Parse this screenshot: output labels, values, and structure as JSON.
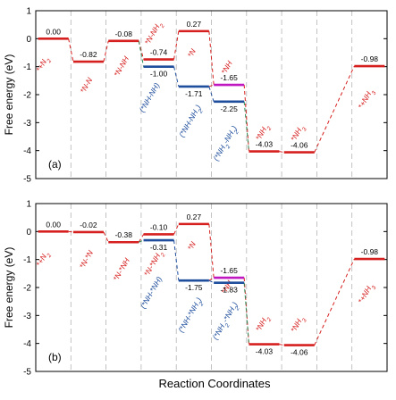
{
  "figure": {
    "xlabel": "Reaction Coordinates",
    "colors": {
      "red": "#d62020",
      "blue": "#1f4e9c",
      "green": "#2e8b57",
      "magenta": "#c018c0",
      "grid": "#b4b4b4"
    }
  },
  "chart_data": [
    {
      "type": "line",
      "panel": "(a)",
      "ylabel": "Free energy (eV)",
      "ylim": [
        -5,
        1
      ],
      "yticks": [
        "1",
        "0",
        "-1",
        "-2",
        "-3",
        "-4",
        "-5"
      ],
      "grid": "vertical dashed",
      "steps": 10,
      "levels": [
        {
          "name": "*+N2",
          "step": 0,
          "y": 0.0,
          "value_label": "0.00",
          "color": "red"
        },
        {
          "name": "*N-N",
          "step": 1,
          "y": -0.82,
          "value_label": "-0.82",
          "color": "red"
        },
        {
          "name": "*N-NH",
          "step": 2,
          "y": -0.08,
          "value_label": "-0.08",
          "color": "red"
        },
        {
          "name": "*N-NH2",
          "step": 3,
          "y": -0.74,
          "value_label": "-0.74",
          "color": "red"
        },
        {
          "name": "(*NH-NH)",
          "step": 3,
          "y": -1.0,
          "value_label": "-1.00",
          "color": "blue"
        },
        {
          "name": "*N",
          "step": 4,
          "y": 0.27,
          "value_label": "0.27",
          "color": "red"
        },
        {
          "name": "(*NH-NH2)",
          "step": 4,
          "y": -1.71,
          "value_label": "-1.71",
          "color": "blue"
        },
        {
          "name": "*NH",
          "step": 5,
          "y": -1.65,
          "value_label": "-1.65",
          "color": "magenta"
        },
        {
          "name": "(*NH2-NH2)",
          "step": 5,
          "y": -2.25,
          "value_label": "-2.25",
          "color": "blue"
        },
        {
          "name": "*NH2",
          "step": 6,
          "y": -4.03,
          "value_label": "-4.03",
          "color": "red"
        },
        {
          "name": "*NH3",
          "step": 7,
          "y": -4.06,
          "value_label": "-4.06",
          "color": "red"
        },
        {
          "name": "*+NH3",
          "step": 9,
          "y": -0.98,
          "value_label": "-0.98",
          "color": "red"
        }
      ],
      "species_labels": [
        "*+N2",
        "*N-N",
        "*N-NH",
        "*N-NH2",
        "(*NH-NH)",
        "*N",
        "(*NH-NH2)",
        "*NH",
        "(*NH2-NH2)",
        "*NH2",
        "*NH3",
        "*+NH3"
      ]
    },
    {
      "type": "line",
      "panel": "(b)",
      "ylabel": "Free energy (eV)",
      "ylim": [
        -5,
        1
      ],
      "yticks": [
        "1",
        "0",
        "-1",
        "-2",
        "-3",
        "-4",
        "-5"
      ],
      "grid": "vertical dashed",
      "steps": 10,
      "levels": [
        {
          "name": "*+N2",
          "step": 0,
          "y": 0.0,
          "value_label": "0.00",
          "color": "red"
        },
        {
          "name": "*N-*N",
          "step": 1,
          "y": -0.02,
          "value_label": "-0.02",
          "color": "red"
        },
        {
          "name": "*N-*NH",
          "step": 2,
          "y": -0.38,
          "value_label": "-0.38",
          "color": "red"
        },
        {
          "name": "*N-*NH2",
          "step": 3,
          "y": -0.1,
          "value_label": "-0.10",
          "color": "red"
        },
        {
          "name": "(*NH-*NH)",
          "step": 3,
          "y": -0.31,
          "value_label": "-0.31",
          "color": "blue"
        },
        {
          "name": "*N",
          "step": 4,
          "y": 0.27,
          "value_label": "0.27",
          "color": "red"
        },
        {
          "name": "(*NH-*NH2)",
          "step": 4,
          "y": -1.75,
          "value_label": "-1.75",
          "color": "blue"
        },
        {
          "name": "*NH",
          "step": 5,
          "y": -1.65,
          "value_label": "-1.65",
          "color": "magenta"
        },
        {
          "name": "(*NH2-*NH2)",
          "step": 5,
          "y": -1.83,
          "value_label": "-1.83",
          "color": "blue"
        },
        {
          "name": "*NH2",
          "step": 6,
          "y": -4.03,
          "value_label": "-4.03",
          "color": "red"
        },
        {
          "name": "*NH3",
          "step": 7,
          "y": -4.06,
          "value_label": "-4.06",
          "color": "red"
        },
        {
          "name": "*+NH3",
          "step": 9,
          "y": -0.98,
          "value_label": "-0.98",
          "color": "red"
        }
      ],
      "species_labels": [
        "*+N2",
        "*N-*N",
        "*N-*NH",
        "*N-*NH2",
        "(*NH-*NH)",
        "*N",
        "(*NH-*NH2)",
        "*NH",
        "(*NH2-*NH2)",
        "*NH2",
        "*NH3",
        "*+NH3"
      ]
    }
  ]
}
